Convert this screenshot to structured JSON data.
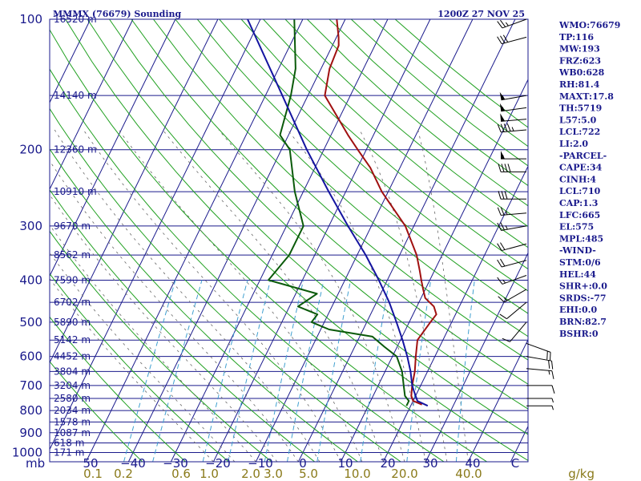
{
  "chart_data": {
    "type": "line",
    "title": "MMMX (76679) Sounding",
    "time": "1200Z 27 NOV 25",
    "xlabel": "",
    "ylabel": "mb",
    "mixing_unit": "g/kg",
    "pressure_ticks": [
      100,
      200,
      300,
      400,
      500,
      600,
      700,
      800,
      900,
      1000
    ],
    "temp_ticks": [
      -50,
      -40,
      -30,
      -20,
      -10,
      0,
      10,
      20,
      30,
      40,
      50
    ],
    "temp_tick_labels": [
      "50",
      "−40",
      "−30",
      "−20",
      "−10",
      "0",
      "10",
      "20",
      "30",
      "40",
      "C"
    ],
    "mixing_ratio_labels": [
      "0.1",
      "0.2",
      "0.6",
      "1.0",
      "2.0",
      "3.0",
      "5.0",
      "10.0",
      "20.0",
      "40.0"
    ],
    "heights": [
      {
        "label": "16520 m",
        "p": 100
      },
      {
        "label": "14140 m",
        "p": 150
      },
      {
        "label": "12360 m",
        "p": 200
      },
      {
        "label": "10910 m",
        "p": 250
      },
      {
        "label": "9670 m",
        "p": 300
      },
      {
        "label": "8562 m",
        "p": 350
      },
      {
        "label": "7590 m",
        "p": 400
      },
      {
        "label": "6702 m",
        "p": 450
      },
      {
        "label": "5890 m",
        "p": 500
      },
      {
        "label": "5142 m",
        "p": 550
      },
      {
        "label": "4452 m",
        "p": 600
      },
      {
        "label": "3804 m",
        "p": 650
      },
      {
        "label": "3204 m",
        "p": 700
      },
      {
        "label": "2580 m",
        "p": 750
      },
      {
        "label": "2034 m",
        "p": 800
      },
      {
        "label": "1578 m",
        "p": 850
      },
      {
        "label": "1087 m",
        "p": 900
      },
      {
        "label": "618 m",
        "p": 950
      },
      {
        "label": "171 m",
        "p": 1000
      }
    ],
    "series": [
      {
        "name": "Temperature",
        "color": "#a01010",
        "points": [
          {
            "p": 775,
            "x": 22.5
          },
          {
            "p": 760,
            "x": 20.0
          },
          {
            "p": 740,
            "x": 19.0
          },
          {
            "p": 700,
            "x": 18.0
          },
          {
            "p": 650,
            "x": 17.0
          },
          {
            "p": 600,
            "x": 15.5
          },
          {
            "p": 550,
            "x": 14.0
          },
          {
            "p": 500,
            "x": 15.0
          },
          {
            "p": 480,
            "x": 15.5
          },
          {
            "p": 460,
            "x": 14.0
          },
          {
            "p": 440,
            "x": 11.0
          },
          {
            "p": 420,
            "x": 9.5
          },
          {
            "p": 400,
            "x": 8.0
          },
          {
            "p": 380,
            "x": 6.5
          },
          {
            "p": 350,
            "x": 4.0
          },
          {
            "p": 300,
            "x": -2.0
          },
          {
            "p": 270,
            "x": -7.5
          },
          {
            "p": 250,
            "x": -11.5
          },
          {
            "p": 220,
            "x": -17.0
          },
          {
            "p": 200,
            "x": -22.0
          },
          {
            "p": 185,
            "x": -26.0
          },
          {
            "p": 150,
            "x": -36.0
          },
          {
            "p": 130,
            "x": -38.0
          },
          {
            "p": 115,
            "x": -38.5
          },
          {
            "p": 110,
            "x": -39.5
          },
          {
            "p": 100,
            "x": -42.0
          }
        ]
      },
      {
        "name": "Dewpoint",
        "color": "#0a5a0a",
        "points": [
          {
            "p": 780,
            "x": 19.0
          },
          {
            "p": 760,
            "x": 19.0
          },
          {
            "p": 740,
            "x": 17.5
          },
          {
            "p": 700,
            "x": 16.0
          },
          {
            "p": 650,
            "x": 14.0
          },
          {
            "p": 600,
            "x": 11.0
          },
          {
            "p": 570,
            "x": 7.0
          },
          {
            "p": 540,
            "x": 3.0
          },
          {
            "p": 520,
            "x": -8.0
          },
          {
            "p": 500,
            "x": -13.0
          },
          {
            "p": 480,
            "x": -12.5
          },
          {
            "p": 460,
            "x": -18.0
          },
          {
            "p": 430,
            "x": -15.0
          },
          {
            "p": 400,
            "x": -28.0
          },
          {
            "p": 350,
            "x": -26.0
          },
          {
            "p": 300,
            "x": -26.0
          },
          {
            "p": 250,
            "x": -32.0
          },
          {
            "p": 200,
            "x": -38.0
          },
          {
            "p": 185,
            "x": -42.0
          },
          {
            "p": 150,
            "x": -44.0
          },
          {
            "p": 130,
            "x": -46.0
          },
          {
            "p": 100,
            "x": -52.0
          }
        ]
      },
      {
        "name": "Parcel",
        "color": "#1414a0",
        "points": [
          {
            "p": 780,
            "x": 24.0
          },
          {
            "p": 760,
            "x": 21.0
          },
          {
            "p": 720,
            "x": 19.0
          },
          {
            "p": 700,
            "x": 18.0
          },
          {
            "p": 650,
            "x": 16.0
          },
          {
            "p": 600,
            "x": 13.5
          },
          {
            "p": 550,
            "x": 10.5
          },
          {
            "p": 500,
            "x": 7.0
          },
          {
            "p": 450,
            "x": 3.0
          },
          {
            "p": 400,
            "x": -2.0
          },
          {
            "p": 350,
            "x": -8.0
          },
          {
            "p": 300,
            "x": -15.5
          },
          {
            "p": 250,
            "x": -24.0
          },
          {
            "p": 200,
            "x": -34.0
          },
          {
            "p": 150,
            "x": -46.0
          },
          {
            "p": 100,
            "x": -63.0
          }
        ]
      }
    ],
    "winds": [
      {
        "p": 100,
        "dir": 250,
        "spd": 25
      },
      {
        "p": 110,
        "dir": 255,
        "spd": 30
      },
      {
        "p": 150,
        "dir": 260,
        "spd": 55
      },
      {
        "p": 160,
        "dir": 262,
        "spd": 55
      },
      {
        "p": 170,
        "dir": 265,
        "spd": 50
      },
      {
        "p": 180,
        "dir": 265,
        "spd": 45
      },
      {
        "p": 210,
        "dir": 270,
        "spd": 55
      },
      {
        "p": 225,
        "dir": 270,
        "spd": 40
      },
      {
        "p": 260,
        "dir": 270,
        "spd": 30
      },
      {
        "p": 280,
        "dir": 265,
        "spd": 25
      },
      {
        "p": 300,
        "dir": 260,
        "spd": 25
      },
      {
        "p": 330,
        "dir": 255,
        "spd": 20
      },
      {
        "p": 360,
        "dir": 255,
        "spd": 20
      },
      {
        "p": 390,
        "dir": 250,
        "spd": 15
      },
      {
        "p": 420,
        "dir": 240,
        "spd": 15
      },
      {
        "p": 450,
        "dir": 230,
        "spd": 10
      },
      {
        "p": 500,
        "dir": 220,
        "spd": 10
      },
      {
        "p": 560,
        "dir": 110,
        "spd": 20
      },
      {
        "p": 600,
        "dir": 100,
        "spd": 20
      },
      {
        "p": 640,
        "dir": 95,
        "spd": 15
      },
      {
        "p": 700,
        "dir": 90,
        "spd": 10
      },
      {
        "p": 750,
        "dir": 90,
        "spd": 5
      },
      {
        "p": 780,
        "dir": 90,
        "spd": 5
      }
    ],
    "grid": true,
    "legend": "none"
  },
  "indices": [
    "WMO:76679",
    "TP:116",
    "MW:193",
    "FRZ:623",
    "WB0:628",
    "RH:81.4",
    "MAXT:17.8",
    "TH:5719",
    "L57:5.0",
    "LCL:722",
    "LI:2.0",
    "-PARCEL-",
    "CAPE:34",
    "CINH:4",
    "LCL:710",
    "CAP:1.3",
    "LFC:665",
    "EL:575",
    "MPL:485",
    "-WIND-",
    "STM:0/6",
    "HEL:44",
    "SHR+:0.0",
    "SRDS:-77",
    "EHI:0.0",
    "BRN:82.7",
    "BSHR:0"
  ],
  "colors": {
    "isobar": "#1a1a8c",
    "isotherm": "#1a1a8c",
    "dry_adiabat": "#20a020",
    "moist_adiabat": "#666666",
    "mixing_ratio": "#40a0d0"
  }
}
